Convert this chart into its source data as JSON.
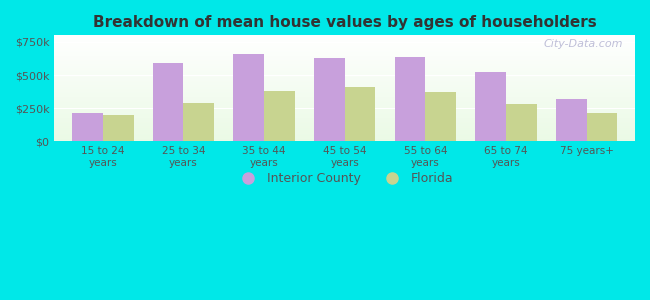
{
  "title": "Breakdown of mean house values by ages of householders",
  "categories": [
    "15 to 24\nyears",
    "25 to 34\nyears",
    "35 to 44\nyears",
    "45 to 54\nyears",
    "55 to 64\nyears",
    "65 to 74\nyears",
    "75 years+"
  ],
  "interior_county": [
    210000,
    590000,
    660000,
    630000,
    635000,
    520000,
    320000
  ],
  "florida": [
    195000,
    290000,
    380000,
    410000,
    375000,
    280000,
    215000
  ],
  "interior_color": "#c8a0dc",
  "florida_color": "#c8d490",
  "background_color": "#00e8e8",
  "yticks": [
    0,
    250000,
    500000,
    750000
  ],
  "ytick_labels": [
    "$0",
    "$250k",
    "$500k",
    "$750k"
  ],
  "ylim": [
    0,
    800000
  ],
  "bar_width": 0.38,
  "legend_labels": [
    "Interior County",
    "Florida"
  ],
  "watermark": "City-Data.com"
}
